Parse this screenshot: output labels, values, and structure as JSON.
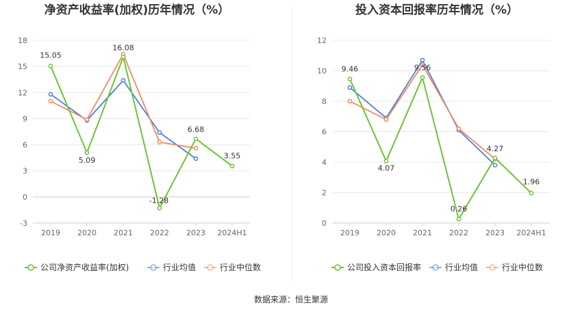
{
  "footer": "数据来源：恒生聚源",
  "chart_data": [
    {
      "type": "line",
      "title": "净资产收益率(加权)历年情况（%）",
      "categories": [
        "2019",
        "2020",
        "2021",
        "2022",
        "2023",
        "2024H1"
      ],
      "ylim": [
        -3,
        18
      ],
      "yticks": [
        "-3",
        "0",
        "3",
        "6",
        "9",
        "12",
        "15",
        "18"
      ],
      "grid": true,
      "legend_position": "bottom",
      "series": [
        {
          "name": "公司净资产收益率(加权)",
          "color": "#6cc434",
          "values": [
            15.05,
            5.09,
            16.08,
            -1.28,
            6.68,
            3.55
          ],
          "labels": [
            "15.05",
            "5.09",
            "16.08",
            "-1.28",
            "6.68",
            "3.55"
          ]
        },
        {
          "name": "行业均值",
          "color": "#4b7fd9",
          "values": [
            11.8,
            8.8,
            13.4,
            7.4,
            4.4,
            null
          ]
        },
        {
          "name": "行业中位数",
          "color": "#f08860",
          "values": [
            11.0,
            8.9,
            16.4,
            6.3,
            5.6,
            null
          ]
        }
      ]
    },
    {
      "type": "line",
      "title": "投入资本回报率历年情况（%）",
      "categories": [
        "2019",
        "2020",
        "2021",
        "2022",
        "2023",
        "2024H1"
      ],
      "ylim": [
        0,
        12
      ],
      "yticks": [
        "0",
        "2",
        "4",
        "6",
        "8",
        "10",
        "12"
      ],
      "grid": true,
      "legend_position": "bottom",
      "series": [
        {
          "name": "公司投入资本回报率",
          "color": "#6cc434",
          "values": [
            9.46,
            4.07,
            9.56,
            0.26,
            4.27,
            1.96
          ],
          "labels": [
            "9.46",
            "4.07",
            "9.56",
            "0.26",
            "4.27",
            "1.96"
          ]
        },
        {
          "name": "行业均值",
          "color": "#4b7fd9",
          "values": [
            8.9,
            6.9,
            10.7,
            6.1,
            3.8,
            null
          ]
        },
        {
          "name": "行业中位数",
          "color": "#f08860",
          "values": [
            8.0,
            6.8,
            10.4,
            6.2,
            4.2,
            null
          ]
        }
      ]
    }
  ]
}
